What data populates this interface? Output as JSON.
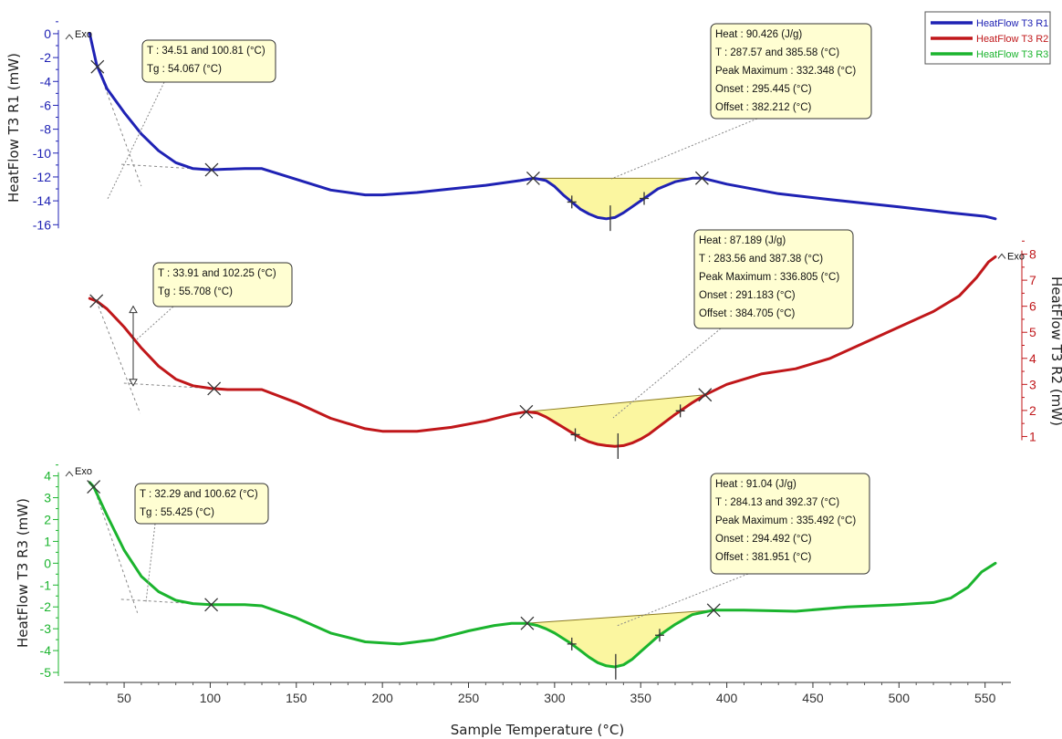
{
  "chart_data": {
    "type": "line",
    "xlabel": "Sample Temperature (°C)",
    "xlim": [
      15,
      565
    ],
    "xticks": [
      50,
      100,
      150,
      200,
      250,
      300,
      350,
      400,
      450,
      500,
      550
    ],
    "exo_label": "Exo",
    "legend_position": "top-right",
    "series": [
      {
        "name": "HeatFlow T3 R1",
        "axis_label": "HeatFlow T3 R1 (mW)",
        "axis_side": "left",
        "color": "#1f22b4",
        "ylim": [
          -17.2,
          0.3
        ],
        "yticks": [
          0,
          -2,
          -4,
          -6,
          -8,
          -10,
          -12,
          -14,
          -16
        ],
        "x": [
          30,
          34,
          40,
          50,
          60,
          70,
          80,
          90,
          100,
          110,
          120,
          130,
          150,
          170,
          190,
          200,
          220,
          240,
          260,
          280,
          288,
          295,
          300,
          305,
          310,
          315,
          320,
          325,
          330,
          335,
          340,
          345,
          350,
          355,
          360,
          370,
          380,
          386,
          400,
          430,
          460,
          500,
          530,
          550,
          556
        ],
        "y": [
          0,
          -2.6,
          -4.6,
          -6.6,
          -8.4,
          -9.8,
          -10.8,
          -11.3,
          -11.4,
          -11.35,
          -11.3,
          -11.3,
          -12.2,
          -13.1,
          -13.5,
          -13.5,
          -13.3,
          -13.0,
          -12.7,
          -12.3,
          -12.1,
          -12.3,
          -12.8,
          -13.5,
          -14.1,
          -14.7,
          -15.1,
          -15.4,
          -15.5,
          -15.4,
          -15.0,
          -14.5,
          -14.0,
          -13.5,
          -13.0,
          -12.4,
          -12.1,
          -12.1,
          -12.6,
          -13.4,
          -13.9,
          -14.5,
          -15.0,
          -15.3,
          -15.5
        ],
        "markers_x": [
          34.51,
          100.81,
          287.57,
          385.58
        ],
        "ticks_x": [
          310,
          352
        ],
        "peak_x": 332.348,
        "integration": [
          287.57,
          385.58
        ],
        "annotations": [
          {
            "lines": [
              "T :  34.51 and 100.81 (°C)",
              "Tg :  54.067 (°C)"
            ]
          },
          {
            "lines": [
              "Heat :  90.426 (J/g)",
              "T :  287.57 and 385.58 (°C)",
              "Peak Maximum :  332.348 (°C)",
              "Onset :  295.445 (°C)",
              "Offset :  382.212 (°C)"
            ]
          }
        ]
      },
      {
        "name": "HeatFlow T3 R2",
        "axis_label": "HeatFlow T3 R2 (mW)",
        "axis_side": "right",
        "color": "#c0171a",
        "ylim": [
          0.35,
          8.3
        ],
        "yticks": [
          1,
          2,
          3,
          4,
          5,
          6,
          7,
          8
        ],
        "x": [
          30,
          34,
          40,
          50,
          60,
          70,
          80,
          90,
          100,
          110,
          120,
          130,
          150,
          170,
          190,
          200,
          220,
          240,
          260,
          275,
          283.56,
          290,
          295,
          300,
          305,
          310,
          315,
          320,
          325,
          330,
          335,
          340,
          345,
          350,
          355,
          360,
          370,
          380,
          387.38,
          400,
          420,
          440,
          460,
          480,
          500,
          520,
          535,
          545,
          552,
          556
        ],
        "y": [
          6.3,
          6.2,
          5.9,
          5.2,
          4.4,
          3.7,
          3.2,
          2.95,
          2.85,
          2.8,
          2.8,
          2.8,
          2.3,
          1.7,
          1.3,
          1.2,
          1.2,
          1.35,
          1.6,
          1.85,
          1.95,
          1.9,
          1.75,
          1.55,
          1.35,
          1.15,
          0.95,
          0.8,
          0.7,
          0.65,
          0.62,
          0.65,
          0.75,
          0.9,
          1.1,
          1.35,
          1.85,
          2.3,
          2.6,
          3.0,
          3.4,
          3.6,
          4.0,
          4.6,
          5.2,
          5.8,
          6.4,
          7.1,
          7.7,
          7.9
        ],
        "markers_x": [
          33.91,
          102.25,
          283.56,
          387.38
        ],
        "ticks_x": [
          312,
          373
        ],
        "peak_x": 336.805,
        "integration": [
          283.56,
          387.38
        ],
        "annotations": [
          {
            "lines": [
              "T :  33.91 and 102.25 (°C)",
              "Tg :  55.708 (°C)"
            ]
          },
          {
            "lines": [
              "Heat :  87.189 (J/g)",
              "T :  283.56 and 387.38 (°C)",
              "Peak Maximum :  336.805 (°C)",
              "Onset :  291.183 (°C)",
              "Offset :  384.705 (°C)"
            ]
          }
        ]
      },
      {
        "name": "HeatFlow T3 R3",
        "axis_label": "HeatFlow T3 R3 (mW)",
        "axis_side": "left",
        "color": "#1bb42e",
        "ylim": [
          -5.5,
          4.4
        ],
        "yticks": [
          4,
          3,
          2,
          1,
          0,
          -1,
          -2,
          -3,
          -4,
          -5
        ],
        "x": [
          30,
          32.29,
          40,
          50,
          60,
          70,
          80,
          90,
          100.62,
          110,
          120,
          130,
          150,
          170,
          190,
          210,
          230,
          250,
          265,
          275,
          284.13,
          290,
          295,
          300,
          305,
          310,
          315,
          320,
          325,
          330,
          335,
          340,
          345,
          350,
          355,
          360,
          370,
          380,
          392.37,
          410,
          440,
          470,
          500,
          520,
          530,
          540,
          548,
          556
        ],
        "y": [
          3.7,
          3.5,
          2.2,
          0.6,
          -0.6,
          -1.3,
          -1.7,
          -1.85,
          -1.9,
          -1.9,
          -1.9,
          -1.95,
          -2.5,
          -3.2,
          -3.6,
          -3.7,
          -3.5,
          -3.1,
          -2.85,
          -2.75,
          -2.75,
          -2.85,
          -3.0,
          -3.2,
          -3.45,
          -3.7,
          -4.0,
          -4.3,
          -4.55,
          -4.7,
          -4.75,
          -4.65,
          -4.4,
          -4.05,
          -3.7,
          -3.35,
          -2.8,
          -2.35,
          -2.15,
          -2.15,
          -2.2,
          -2.0,
          -1.9,
          -1.8,
          -1.6,
          -1.1,
          -0.4,
          0.0
        ],
        "markers_x": [
          32.29,
          100.62,
          284.13,
          392.37
        ],
        "ticks_x": [
          310,
          361
        ],
        "peak_x": 335.492,
        "integration": [
          284.13,
          392.37
        ],
        "annotations": [
          {
            "lines": [
              "T :  32.29 and 100.62 (°C)",
              "Tg :  55.425 (°C)"
            ]
          },
          {
            "lines": [
              "Heat :  91.04 (J/g)",
              "T :  284.13 and 392.37 (°C)",
              "Peak Maximum :  335.492 (°C)",
              "Onset :  294.492 (°C)",
              "Offset :  381.951 (°C)"
            ]
          }
        ]
      }
    ]
  }
}
